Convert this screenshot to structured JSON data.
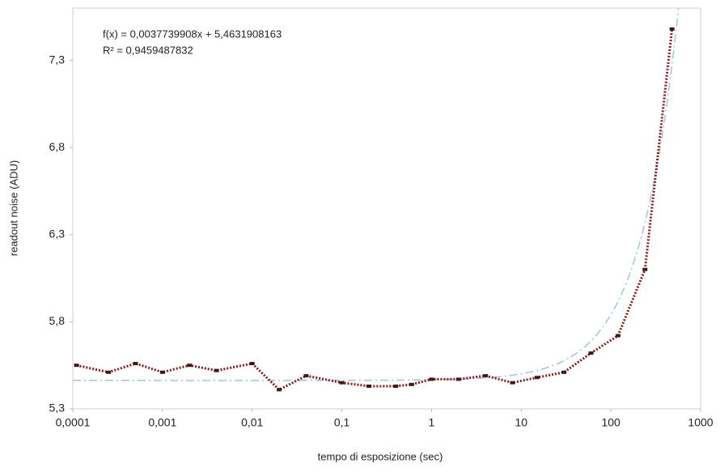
{
  "chart_data": {
    "type": "line",
    "log_x": true,
    "xlabel": "tempo di esposizione (sec)",
    "ylabel": "readout noise (ADU)",
    "annotations": [
      "f(x) = 0,0037739908x + 5,4631908163",
      "R² = 0,9459487832"
    ],
    "x": [
      0.00011,
      0.00025,
      0.0005,
      0.001,
      0.002,
      0.004,
      0.01,
      0.02,
      0.04,
      0.1,
      0.2,
      0.4,
      0.6,
      1,
      2,
      4,
      8,
      15,
      30,
      60,
      120,
      240,
      480
    ],
    "series": [
      {
        "color": "#8b1a1a",
        "marker_color": "#3a1a1a",
        "values": [
          5.55,
          5.51,
          5.56,
          5.51,
          5.55,
          5.52,
          5.56,
          5.41,
          5.49,
          5.45,
          5.43,
          5.43,
          5.44,
          5.47,
          5.47,
          5.49,
          5.45,
          5.48,
          5.51,
          5.62,
          5.72,
          6.1,
          7.48
        ]
      }
    ],
    "trendline": {
      "slope": 0.0037739908,
      "intercept": 5.4631908163,
      "color": "#9ec4e0"
    },
    "xlim": [
      0.0001,
      1000
    ],
    "xticks": [
      {
        "value": 0.0001,
        "label": "0,0001"
      },
      {
        "value": 0.001,
        "label": "0,001"
      },
      {
        "value": 0.01,
        "label": "0,01"
      },
      {
        "value": 0.1,
        "label": "0,1"
      },
      1,
      10,
      100,
      1000
    ],
    "ylim": [
      5.3,
      7.6
    ],
    "yticks": [
      {
        "value": 5.3,
        "label": "5,3"
      },
      {
        "value": 5.8,
        "label": "5,8"
      },
      {
        "value": 6.3,
        "label": "6,3"
      },
      {
        "value": 6.8,
        "label": "6,8"
      },
      {
        "value": 7.3,
        "label": "7,3"
      }
    ]
  }
}
